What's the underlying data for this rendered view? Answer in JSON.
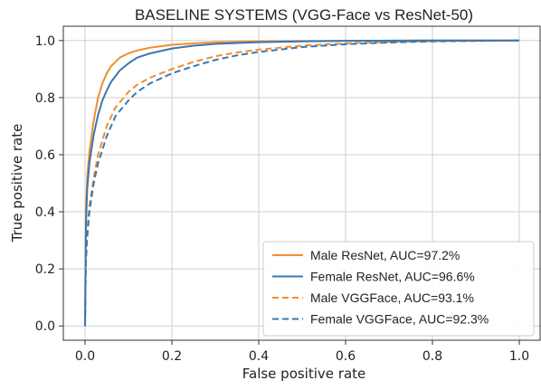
{
  "chart_data": {
    "type": "line",
    "title": "BASELINE SYSTEMS (VGG-Face vs ResNet-50)",
    "xlabel": "False positive rate",
    "ylabel": "True positive rate",
    "xlim": [
      -0.05,
      1.05
    ],
    "ylim": [
      -0.05,
      1.05
    ],
    "xticks": [
      0.0,
      0.2,
      0.4,
      0.6,
      0.8,
      1.0
    ],
    "yticks": [
      0.0,
      0.2,
      0.4,
      0.6,
      0.8,
      1.0
    ],
    "xtick_labels": [
      "0.0",
      "0.2",
      "0.4",
      "0.6",
      "0.8",
      "1.0"
    ],
    "ytick_labels": [
      "0.0",
      "0.2",
      "0.4",
      "0.6",
      "0.8",
      "1.0"
    ],
    "grid": true,
    "legend_position": "bottom-right",
    "series": [
      {
        "name": "Male ResNet, AUC=97.2%",
        "color": "#f28e2b",
        "style": "solid",
        "x": [
          0.0,
          0.002,
          0.005,
          0.01,
          0.02,
          0.03,
          0.04,
          0.05,
          0.06,
          0.08,
          0.1,
          0.12,
          0.15,
          0.2,
          0.25,
          0.3,
          0.4,
          0.5,
          0.6,
          0.8,
          1.0
        ],
        "y": [
          0.0,
          0.4,
          0.52,
          0.61,
          0.72,
          0.8,
          0.85,
          0.885,
          0.91,
          0.94,
          0.955,
          0.965,
          0.975,
          0.985,
          0.99,
          0.994,
          0.997,
          0.998,
          0.999,
          1.0,
          1.0
        ]
      },
      {
        "name": "Female ResNet, AUC=96.6%",
        "color": "#3a78b0",
        "style": "solid",
        "x": [
          0.0,
          0.002,
          0.005,
          0.01,
          0.02,
          0.03,
          0.04,
          0.05,
          0.06,
          0.08,
          0.1,
          0.12,
          0.15,
          0.2,
          0.25,
          0.3,
          0.4,
          0.5,
          0.6,
          0.8,
          1.0
        ],
        "y": [
          0.0,
          0.35,
          0.48,
          0.57,
          0.67,
          0.74,
          0.79,
          0.825,
          0.855,
          0.895,
          0.92,
          0.94,
          0.955,
          0.972,
          0.982,
          0.988,
          0.994,
          0.997,
          0.999,
          1.0,
          1.0
        ]
      },
      {
        "name": "Male VGGFace, AUC=93.1%",
        "color": "#f28e2b",
        "style": "dashed",
        "x": [
          0.0,
          0.002,
          0.005,
          0.01,
          0.02,
          0.03,
          0.05,
          0.07,
          0.1,
          0.12,
          0.15,
          0.2,
          0.25,
          0.3,
          0.35,
          0.4,
          0.5,
          0.6,
          0.7,
          0.8,
          1.0
        ],
        "y": [
          0.0,
          0.25,
          0.33,
          0.42,
          0.52,
          0.6,
          0.7,
          0.765,
          0.82,
          0.845,
          0.87,
          0.9,
          0.925,
          0.945,
          0.958,
          0.968,
          0.982,
          0.99,
          0.995,
          0.998,
          1.0
        ]
      },
      {
        "name": "Female VGGFace, AUC=92.3%",
        "color": "#3a78b0",
        "style": "dashed",
        "x": [
          0.0,
          0.002,
          0.005,
          0.01,
          0.02,
          0.03,
          0.05,
          0.07,
          0.1,
          0.12,
          0.15,
          0.2,
          0.25,
          0.3,
          0.35,
          0.4,
          0.5,
          0.6,
          0.7,
          0.8,
          1.0
        ],
        "y": [
          0.0,
          0.22,
          0.31,
          0.4,
          0.5,
          0.57,
          0.665,
          0.735,
          0.79,
          0.82,
          0.85,
          0.885,
          0.91,
          0.932,
          0.948,
          0.96,
          0.977,
          0.987,
          0.993,
          0.997,
          1.0
        ]
      }
    ]
  }
}
